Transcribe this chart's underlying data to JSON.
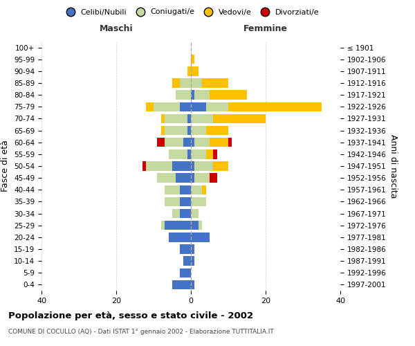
{
  "age_groups": [
    "0-4",
    "5-9",
    "10-14",
    "15-19",
    "20-24",
    "25-29",
    "30-34",
    "35-39",
    "40-44",
    "45-49",
    "50-54",
    "55-59",
    "60-64",
    "65-69",
    "70-74",
    "75-79",
    "80-84",
    "85-89",
    "90-94",
    "95-99",
    "100+"
  ],
  "birth_years": [
    "1997-2001",
    "1992-1996",
    "1987-1991",
    "1982-1986",
    "1977-1981",
    "1972-1976",
    "1967-1971",
    "1962-1966",
    "1957-1961",
    "1952-1956",
    "1947-1951",
    "1942-1946",
    "1937-1941",
    "1932-1936",
    "1927-1931",
    "1922-1926",
    "1917-1921",
    "1912-1916",
    "1907-1911",
    "1902-1906",
    "≤ 1901"
  ],
  "males": {
    "celibi": [
      5,
      3,
      2,
      3,
      6,
      7,
      3,
      3,
      3,
      4,
      5,
      1,
      2,
      1,
      1,
      3,
      0,
      0,
      0,
      0,
      0
    ],
    "coniugati": [
      0,
      0,
      0,
      0,
      0,
      1,
      2,
      4,
      4,
      5,
      7,
      5,
      5,
      6,
      6,
      7,
      4,
      3,
      0,
      0,
      0
    ],
    "vedovi": [
      0,
      0,
      0,
      0,
      0,
      0,
      0,
      0,
      0,
      0,
      0,
      0,
      0,
      1,
      1,
      2,
      0,
      2,
      1,
      0,
      0
    ],
    "divorziati": [
      0,
      0,
      0,
      0,
      0,
      0,
      0,
      0,
      0,
      0,
      1,
      0,
      2,
      0,
      0,
      0,
      0,
      0,
      0,
      0,
      0
    ]
  },
  "females": {
    "nubili": [
      1,
      0,
      1,
      1,
      5,
      2,
      0,
      0,
      0,
      1,
      1,
      0,
      1,
      0,
      0,
      4,
      1,
      0,
      0,
      0,
      0
    ],
    "coniugate": [
      0,
      0,
      0,
      0,
      0,
      1,
      2,
      4,
      3,
      4,
      5,
      4,
      4,
      4,
      6,
      6,
      4,
      3,
      0,
      0,
      0
    ],
    "vedove": [
      0,
      0,
      0,
      0,
      0,
      0,
      0,
      0,
      1,
      0,
      4,
      2,
      5,
      6,
      14,
      25,
      10,
      7,
      2,
      1,
      0
    ],
    "divorziate": [
      0,
      0,
      0,
      0,
      0,
      0,
      0,
      0,
      0,
      2,
      0,
      1,
      1,
      0,
      0,
      0,
      0,
      0,
      0,
      0,
      0
    ]
  },
  "colors": {
    "celibi_nubili": "#4472c4",
    "coniugati": "#c5d9a0",
    "vedovi": "#ffc000",
    "divorziati": "#cc0000"
  },
  "xlim": [
    -40,
    40
  ],
  "xticks": [
    -40,
    -20,
    0,
    20,
    40
  ],
  "xticklabels": [
    "40",
    "20",
    "0",
    "20",
    "40"
  ],
  "title": "Popolazione per età, sesso e stato civile - 2002",
  "subtitle": "COMUNE DI COCULLO (AQ) - Dati ISTAT 1° gennaio 2002 - Elaborazione TUTTITALIA.IT",
  "ylabel_left": "Fasce di età",
  "ylabel_right": "Anni di nascita",
  "label_maschi": "Maschi",
  "label_femmine": "Femmine",
  "legend_labels": [
    "Celibi/Nubili",
    "Coniugati/e",
    "Vedovi/e",
    "Divorziati/e"
  ],
  "background_color": "#ffffff",
  "grid_color": "#cccccc"
}
